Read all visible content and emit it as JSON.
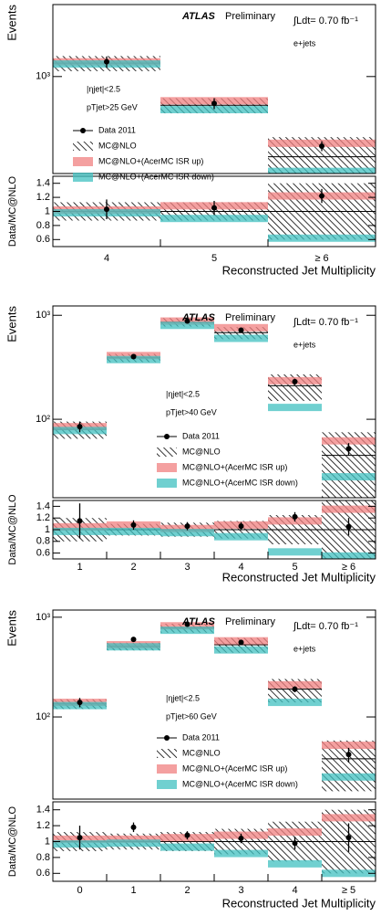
{
  "chart_data": [
    {
      "type": "bar",
      "log_y": true,
      "ylabel": "Events",
      "xlabel": "Reconstructed Jet Multiplicity",
      "atlas": "ATLAS",
      "preliminary": "Preliminary",
      "lumi": "∫Ldt= 0.70 fb⁻¹",
      "channel": "e+jets",
      "eta_cut": "|ηjet|<2.5",
      "pt_cut": "pTjet>25 GeV",
      "categories": [
        "4",
        "5",
        "≥ 6"
      ],
      "ylim": [
        178,
        3600
      ],
      "yticks": [
        {
          "value": 1000,
          "label": "10³"
        }
      ],
      "series": [
        {
          "name": "Data 2011",
          "color": "#000000",
          "values": [
            1300,
            620,
            290
          ],
          "errors": [
            130,
            60,
            25
          ]
        },
        {
          "name": "MC@NLO",
          "color": "#000000",
          "values": [
            1270,
            600,
            240
          ],
          "errors": [
            170,
            80,
            100
          ]
        },
        {
          "name": "MC@NLO+(AcerMC ISR up)",
          "color": "#f08080",
          "values": [
            1300,
            650,
            305
          ]
        },
        {
          "name": "MC@NLO+(AcerMC ISR down)",
          "color": "#40c0c0",
          "values": [
            1250,
            555,
            185
          ]
        }
      ],
      "ratio": {
        "ylabel": "Data/MC@NLO",
        "ylim": [
          0.5,
          1.5
        ],
        "yticks": [
          0.6,
          0.8,
          1,
          1.2,
          1.4
        ],
        "series": [
          {
            "values": [
              1.03,
              1.05,
              1.22
            ],
            "errors": [
              0.14,
              0.1,
              0.1
            ]
          },
          {
            "values": [
              1,
              1,
              1
            ],
            "errors": [
              0.13,
              0.13,
              0.4
            ]
          },
          {
            "values": [
              1.02,
              1.08,
              1.22
            ]
          },
          {
            "values": [
              0.98,
              0.9,
              0.62
            ]
          }
        ]
      }
    },
    {
      "type": "bar",
      "log_y": true,
      "ylabel": "Events",
      "xlabel": "Reconstructed Jet Multiplicity",
      "atlas": "ATLAS",
      "preliminary": "Preliminary",
      "lumi": "∫Ldt= 0.70 fb⁻¹",
      "channel": "e+jets",
      "eta_cut": "|ηjet|<2.5",
      "pt_cut": "pTjet>40 GeV",
      "categories": [
        "1",
        "2",
        "3",
        "4",
        "5",
        "≥ 6"
      ],
      "ylim": [
        17.6,
        1230
      ],
      "yticks": [
        {
          "value": 100,
          "label": "10²"
        },
        {
          "value": 1000,
          "label": "10³"
        }
      ],
      "series": [
        {
          "name": "Data 2011",
          "color": "#000000",
          "values": [
            85,
            400,
            880,
            720,
            230,
            52
          ],
          "errors": [
            10,
            20,
            30,
            27,
            15,
            7
          ]
        },
        {
          "name": "MC@NLO",
          "color": "#000000",
          "values": [
            80,
            390,
            860,
            680,
            210,
            45
          ],
          "errors": [
            15,
            35,
            80,
            90,
            60,
            30
          ]
        },
        {
          "name": "MC@NLO+(AcerMC ISR up)",
          "color": "#f08080",
          "values": [
            85,
            410,
            880,
            760,
            235,
            62
          ]
        },
        {
          "name": "MC@NLO+(AcerMC ISR down)",
          "color": "#40c0c0",
          "values": [
            78,
            375,
            800,
            600,
            130,
            28
          ]
        }
      ],
      "ratio": {
        "ylabel": "Data/MC@NLO",
        "ylim": [
          0.5,
          1.5
        ],
        "yticks": [
          0.6,
          0.8,
          1,
          1.2,
          1.4
        ],
        "series": [
          {
            "values": [
              1.15,
              1.08,
              1.06,
              1.06,
              1.22,
              1.05
            ],
            "errors": [
              0.3,
              0.08,
              0.07,
              0.07,
              0.08,
              0.15
            ]
          },
          {
            "values": [
              1,
              1,
              1,
              1,
              1,
              1
            ],
            "errors": [
              0.2,
              0.1,
              0.12,
              0.15,
              0.25,
              0.5
            ]
          },
          {
            "values": [
              1.05,
              1.08,
              1.02,
              1.08,
              1.15,
              1.35
            ]
          },
          {
            "values": [
              0.97,
              0.97,
              0.95,
              0.88,
              0.62,
              0.55
            ]
          }
        ]
      }
    },
    {
      "type": "bar",
      "log_y": true,
      "ylabel": "Events",
      "xlabel": "Reconstructed Jet Multiplicity",
      "atlas": "ATLAS",
      "preliminary": "Preliminary",
      "lumi": "∫Ldt= 0.70 fb⁻¹",
      "channel": "e+jets",
      "eta_cut": "|ηjet|<2.5",
      "pt_cut": "pTjet>60 GeV",
      "categories": [
        "0",
        "1",
        "2",
        "3",
        "4",
        "≥ 5"
      ],
      "ylim": [
        15,
        1180
      ],
      "yticks": [
        {
          "value": 100,
          "label": "10²"
        },
        {
          "value": 1000,
          "label": "10³"
        }
      ],
      "series": [
        {
          "name": "Data 2011",
          "color": "#000000",
          "values": [
            140,
            600,
            850,
            560,
            190,
            42
          ],
          "errors": [
            15,
            25,
            30,
            25,
            13,
            7
          ]
        },
        {
          "name": "MC@NLO",
          "color": "#000000",
          "values": [
            135,
            510,
            780,
            530,
            190,
            38
          ],
          "errors": [
            15,
            45,
            80,
            90,
            50,
            20
          ]
        },
        {
          "name": "MC@NLO+(AcerMC ISR up)",
          "color": "#f08080",
          "values": [
            140,
            530,
            820,
            580,
            210,
            52
          ]
        },
        {
          "name": "MC@NLO+(AcerMC ISR down)",
          "color": "#40c0c0",
          "values": [
            130,
            505,
            740,
            470,
            140,
            25
          ]
        }
      ],
      "ratio": {
        "ylabel": "Data/MC@NLO",
        "ylim": [
          0.5,
          1.5
        ],
        "yticks": [
          0.6,
          0.8,
          1,
          1.2,
          1.4
        ],
        "series": [
          {
            "values": [
              1.05,
              1.18,
              1.08,
              1.04,
              0.98,
              1.05
            ],
            "errors": [
              0.15,
              0.06,
              0.05,
              0.06,
              0.08,
              0.18
            ]
          },
          {
            "values": [
              1,
              1,
              1,
              1,
              1,
              1
            ],
            "errors": [
              0.12,
              0.1,
              0.12,
              0.16,
              0.25,
              0.4
            ]
          },
          {
            "values": [
              1.03,
              1.03,
              1.05,
              1.08,
              1.12,
              1.3
            ]
          },
          {
            "values": [
              0.97,
              0.98,
              0.93,
              0.85,
              0.72,
              0.6
            ]
          }
        ]
      }
    }
  ]
}
